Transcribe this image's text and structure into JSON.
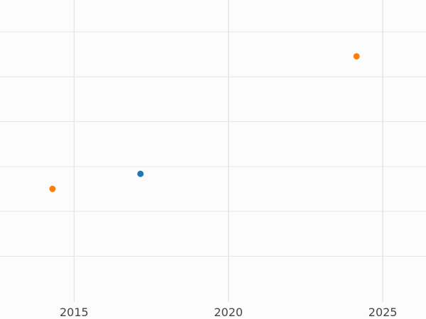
{
  "chart_data": {
    "type": "scatter",
    "title": "",
    "xlabel": "",
    "ylabel": "",
    "xlim": [
      2012.6,
      2026.4
    ],
    "ylim": [
      0,
      1
    ],
    "grid": true,
    "legend": "none",
    "x_ticks": [
      2015,
      2020,
      2025
    ],
    "x_tick_labels": [
      "2015",
      "2020",
      "2025"
    ],
    "y_gridlines": [
      0.1514,
      0.3,
      0.4486,
      0.5973,
      0.7459,
      0.8946
    ],
    "series": [
      {
        "color": "#ff7f0e",
        "points": [
          {
            "x": 2014.3,
            "y": 0.3746
          },
          {
            "x": 2024.15,
            "y": 0.8135
          }
        ]
      },
      {
        "color": "#1f77b4",
        "points": [
          {
            "x": 2017.15,
            "y": 0.4243
          }
        ]
      }
    ]
  }
}
